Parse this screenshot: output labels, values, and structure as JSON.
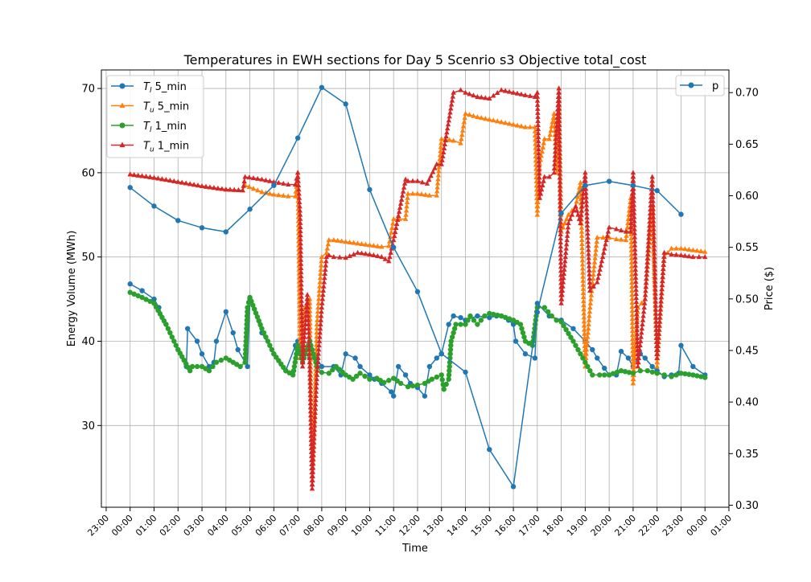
{
  "chart_data": {
    "type": "line",
    "title": "Temperatures in EWH sections for Day 5 Scenrio s3 Objective total_cost",
    "xlabel": "Time",
    "ylabel_left": "Energy Volume (MWh)",
    "ylabel_right": "Price ($)",
    "xlim": [
      -1.2,
      25.0
    ],
    "ylim_left": [
      20.3,
      72.2
    ],
    "ylim_right": [
      0.298,
      0.722
    ],
    "x_ticks": [
      {
        "v": -1,
        "label": "23:00"
      },
      {
        "v": 0,
        "label": "00:00"
      },
      {
        "v": 1,
        "label": "01:00"
      },
      {
        "v": 2,
        "label": "02:00"
      },
      {
        "v": 3,
        "label": "03:00"
      },
      {
        "v": 4,
        "label": "04:00"
      },
      {
        "v": 5,
        "label": "05:00"
      },
      {
        "v": 6,
        "label": "06:00"
      },
      {
        "v": 7,
        "label": "07:00"
      },
      {
        "v": 8,
        "label": "08:00"
      },
      {
        "v": 9,
        "label": "09:00"
      },
      {
        "v": 10,
        "label": "10:00"
      },
      {
        "v": 11,
        "label": "11:00"
      },
      {
        "v": 12,
        "label": "12:00"
      },
      {
        "v": 13,
        "label": "13:00"
      },
      {
        "v": 14,
        "label": "14:00"
      },
      {
        "v": 15,
        "label": "15:00"
      },
      {
        "v": 16,
        "label": "16:00"
      },
      {
        "v": 17,
        "label": "17:00"
      },
      {
        "v": 18,
        "label": "18:00"
      },
      {
        "v": 19,
        "label": "19:00"
      },
      {
        "v": 20,
        "label": "20:00"
      },
      {
        "v": 21,
        "label": "21:00"
      },
      {
        "v": 22,
        "label": "22:00"
      },
      {
        "v": 23,
        "label": "23:00"
      },
      {
        "v": 24,
        "label": "00:00"
      },
      {
        "v": 25,
        "label": "01:00"
      }
    ],
    "y_ticks_left": [
      {
        "v": 30,
        "label": "30"
      },
      {
        "v": 40,
        "label": "40"
      },
      {
        "v": 50,
        "label": "50"
      },
      {
        "v": 60,
        "label": "60"
      },
      {
        "v": 70,
        "label": "70"
      }
    ],
    "y_ticks_right": [
      {
        "v": 0.3,
        "label": "0.30"
      },
      {
        "v": 0.35,
        "label": "0.35"
      },
      {
        "v": 0.4,
        "label": "0.40"
      },
      {
        "v": 0.45,
        "label": "0.45"
      },
      {
        "v": 0.5,
        "label": "0.50"
      },
      {
        "v": 0.55,
        "label": "0.55"
      },
      {
        "v": 0.6,
        "label": "0.60"
      },
      {
        "v": 0.65,
        "label": "0.65"
      },
      {
        "v": 0.7,
        "label": "0.70"
      }
    ],
    "grid": true,
    "legend_left": {
      "placement": "upper left",
      "entries": [
        {
          "italic": "T",
          "sub": "l",
          "rest": " 5_min",
          "color": "#1f77b4",
          "marker": "circle"
        },
        {
          "italic": "T",
          "sub": "u",
          "rest": " 5_min",
          "color": "#ff7f0e",
          "marker": "triangle"
        },
        {
          "italic": "T",
          "sub": "l",
          "rest": " 1_min",
          "color": "#2ca02c",
          "marker": "circle"
        },
        {
          "italic": "T",
          "sub": "u",
          "rest": " 1_min",
          "color": "#d62728",
          "marker": "triangle"
        }
      ]
    },
    "legend_right": {
      "placement": "upper right",
      "entries": [
        {
          "label": "p",
          "color": "#1f77b4",
          "marker": "circle"
        }
      ]
    },
    "series": [
      {
        "name": "T_l 5_min",
        "axis": "left",
        "color": "#1f77b4",
        "marker": "circle",
        "x": [
          0,
          0.5,
          1,
          1.2,
          1.5,
          2,
          2.35,
          2.4,
          2.8,
          3.0,
          3.3,
          3.5,
          3.6,
          4,
          4.3,
          4.5,
          4.9,
          5,
          5.5,
          6,
          6.5,
          6.9,
          7.0,
          7.2,
          7.5,
          7.8,
          8.0,
          8.5,
          8.8,
          9,
          9.4,
          9.6,
          10,
          10.2,
          10.5,
          10.9,
          11,
          11.2,
          11.5,
          11.7,
          12,
          12.3,
          12.5,
          12.8,
          13,
          13.3,
          13.5,
          13.8,
          14,
          14.5,
          15,
          15.3,
          15.5,
          15.8,
          16,
          16.1,
          16.5,
          16.9,
          17,
          17.5,
          18,
          18.5,
          19,
          19.3,
          19.5,
          19.8,
          20,
          20.3,
          20.5,
          20.8,
          21,
          21.3,
          21.5,
          21.8,
          22,
          22.3,
          22.6,
          22.9,
          23,
          23.5,
          24
        ],
        "y": [
          46.8,
          46,
          45,
          44,
          42,
          39,
          37,
          41.5,
          40,
          38.5,
          37,
          37.5,
          40,
          43.5,
          41,
          39,
          37,
          45,
          41,
          38.5,
          36.5,
          39.5,
          40,
          39,
          38,
          38,
          37,
          37,
          36,
          38.5,
          38,
          37,
          36,
          35.5,
          35,
          34,
          33.5,
          37,
          36,
          35,
          34.5,
          33.5,
          37,
          38,
          38.5,
          42,
          43,
          42.8,
          42.5,
          43,
          42.8,
          43,
          43,
          42.5,
          42,
          40,
          38.5,
          38,
          44.5,
          43,
          42.5,
          41.5,
          40,
          39,
          38,
          36.8,
          36,
          36,
          38.8,
          38,
          37,
          38.5,
          38,
          37,
          36.5,
          35.8,
          36,
          36.2,
          39.5,
          37,
          36
        ]
      },
      {
        "name": "T_u 5_min",
        "axis": "left",
        "color": "#ff7f0e",
        "marker": "triangle",
        "x": [
          0,
          1,
          2,
          3,
          4,
          4.7,
          4.8,
          5.5,
          6,
          6.6,
          6.9,
          7.0,
          7.1,
          7.3,
          7.5,
          7.6,
          7.8,
          8.0,
          8.2,
          8.3,
          8.5,
          9.0,
          9.5,
          10,
          10.5,
          10.8,
          11,
          11.5,
          11.6,
          12,
          12.5,
          12.8,
          13,
          13.5,
          13.8,
          14,
          14.5,
          15,
          15.5,
          16,
          16.5,
          16.9,
          17.0,
          17.1,
          17.3,
          17.5,
          17.7,
          17.8,
          17.9,
          18,
          18.3,
          18.6,
          18.8,
          19,
          19.2,
          19.5,
          20,
          20.3,
          20.7,
          20.9,
          21,
          21.2,
          21.5,
          21.8,
          22,
          22.3,
          22.6,
          23,
          23.5,
          24
        ],
        "y": [
          59.8,
          59.4,
          58.9,
          58.4,
          58,
          57.9,
          58.5,
          57.7,
          57.4,
          57.2,
          57.2,
          60,
          38,
          44,
          45,
          23,
          42,
          50,
          50.5,
          52,
          52,
          51.8,
          51.6,
          51.4,
          51.2,
          51.3,
          54.5,
          54.5,
          57.5,
          57.5,
          57.3,
          57.3,
          64,
          63.8,
          63.5,
          67,
          66.6,
          66.3,
          66,
          65.7,
          65.4,
          65.4,
          55,
          61,
          64,
          64,
          67,
          60,
          70,
          53,
          55,
          56,
          58.8,
          37,
          44,
          52.3,
          52.3,
          52.1,
          52,
          57,
          35,
          44,
          45,
          56,
          37,
          50,
          51,
          51,
          50.8,
          50.6
        ]
      },
      {
        "name": "T_l 1_min",
        "axis": "left",
        "color": "#2ca02c",
        "marker": "circle",
        "x": [
          0,
          0.5,
          1,
          1.5,
          2,
          2.5,
          2.6,
          3.0,
          3.3,
          3.6,
          4.0,
          4.3,
          4.6,
          4.8,
          4.9,
          5.0,
          5.5,
          6.0,
          6.5,
          6.8,
          7.0,
          7.2,
          7.5,
          7.8,
          8.0,
          8.3,
          8.6,
          9.0,
          9.3,
          9.6,
          10.0,
          10.3,
          10.6,
          11.0,
          11.3,
          11.6,
          12.0,
          12.3,
          12.6,
          13.0,
          13.1,
          13.3,
          13.4,
          13.6,
          14.0,
          14.2,
          14.5,
          14.8,
          15.0,
          15.5,
          16.0,
          16.3,
          16.5,
          16.8,
          17.0,
          17.3,
          17.6,
          17.8,
          18.0,
          18.5,
          18.8,
          19.0,
          19.3,
          19.6,
          20.0,
          20.5,
          21.0,
          21.3,
          21.6,
          22.0,
          22.3,
          22.6,
          23.0,
          23.5,
          24
        ],
        "y": [
          45.8,
          45.2,
          44.5,
          42,
          39,
          36.5,
          37,
          37,
          36.5,
          37.5,
          38,
          37.5,
          37,
          37.5,
          44,
          45.2,
          41.5,
          38.5,
          36.5,
          36,
          39.5,
          37.5,
          40,
          37,
          36.3,
          36.2,
          37,
          36,
          35.5,
          36.2,
          35.5,
          35.6,
          35.1,
          35.6,
          35,
          34.6,
          34.8,
          35,
          35.5,
          36,
          34.3,
          35.5,
          40,
          42,
          42,
          43,
          42,
          43,
          43.3,
          43,
          42.5,
          42,
          40,
          39.5,
          44,
          44,
          43,
          42.5,
          42.3,
          40,
          38.5,
          37.5,
          36,
          36,
          36,
          36.5,
          36.2,
          36.5,
          36.5,
          36.2,
          36,
          35.8,
          36.2,
          36,
          35.7
        ]
      },
      {
        "name": "T_u 1_min",
        "axis": "left",
        "color": "#d62728",
        "marker": "triangle",
        "x": [
          0,
          1,
          2,
          3,
          4,
          4.7,
          4.8,
          5.5,
          6,
          6.6,
          6.9,
          7.0,
          7.1,
          7.2,
          7.4,
          7.5,
          7.6,
          7.7,
          7.8,
          8.0,
          8.2,
          8.3,
          8.5,
          9.0,
          9.5,
          10,
          10.5,
          10.8,
          11,
          11.5,
          11.6,
          12,
          12.4,
          12.8,
          13,
          13.5,
          13.8,
          14,
          14.5,
          15,
          15.5,
          16,
          16.5,
          16.9,
          17.0,
          17.1,
          17.3,
          17.5,
          17.7,
          17.8,
          17.9,
          18,
          18.3,
          18.6,
          18.8,
          19,
          19.2,
          19.5,
          20,
          20.3,
          20.7,
          20.9,
          21,
          21.2,
          21.5,
          21.8,
          22,
          22.3,
          22.6,
          23,
          23.5,
          24
        ],
        "y": [
          59.8,
          59.4,
          58.9,
          58.4,
          58,
          57.9,
          59.5,
          59.2,
          58.9,
          58.6,
          58.6,
          60,
          55,
          37,
          45.5,
          37,
          22.5,
          30,
          36,
          44,
          50,
          50.2,
          50,
          49.9,
          50.5,
          50.3,
          50,
          49.5,
          52,
          59.2,
          59,
          59,
          58.7,
          61,
          61,
          69.5,
          69.8,
          69.5,
          69,
          68.8,
          69.8,
          69.5,
          69.2,
          69,
          69.5,
          57,
          59.5,
          59.5,
          60,
          65,
          70,
          44.5,
          54,
          56,
          54,
          60,
          46,
          47,
          53.5,
          53.3,
          53,
          53,
          60,
          37,
          45,
          59.5,
          38,
          50.5,
          50.3,
          50.2,
          50,
          50
        ]
      },
      {
        "name": "p",
        "axis": "right",
        "color": "#1f77b4",
        "marker": "circle",
        "x": [
          0,
          1,
          2,
          3,
          4,
          5,
          6,
          7,
          8,
          9,
          10,
          11,
          12,
          13,
          14,
          15,
          16,
          17,
          18,
          19,
          20,
          21,
          22,
          23
        ],
        "y": [
          0.608,
          0.59,
          0.576,
          0.569,
          0.565,
          0.587,
          0.61,
          0.656,
          0.705,
          0.689,
          0.606,
          0.55,
          0.507,
          0.447,
          0.429,
          0.354,
          0.318,
          0.487,
          0.583,
          0.61,
          0.614,
          0.61,
          0.605,
          0.582
        ]
      }
    ]
  }
}
